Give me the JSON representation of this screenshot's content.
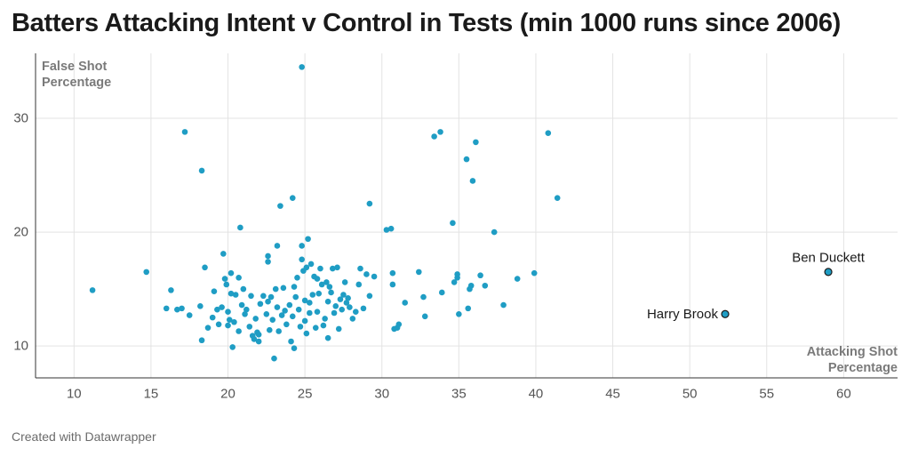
{
  "title": "Batters Attacking Intent v Control in Tests (min 1000 runs since 2006)",
  "footer": "Created with Datawrapper",
  "chart_data": {
    "type": "scatter",
    "xlim": [
      7.5,
      63.5
    ],
    "ylim": [
      7.2,
      35.7
    ],
    "x_ticks": [
      10,
      15,
      20,
      25,
      30,
      35,
      40,
      45,
      50,
      55,
      60
    ],
    "y_ticks": [
      10,
      20,
      30
    ],
    "grid": true,
    "xlabel_lines": [
      "Attacking Shot",
      "Percentage"
    ],
    "ylabel_lines": [
      "False Shot",
      "Percentage"
    ],
    "colors": {
      "point": "#1f9dc4",
      "point_stroke": "#1c6f8c",
      "highlight_stroke": "#1a1a1a",
      "grid": "#e3e3e3",
      "axis": "#333333"
    },
    "annotations": [
      {
        "label": "Ben Duckett",
        "x": 59.0,
        "y": 16.5
      },
      {
        "label": "Harry Brook",
        "x": 52.3,
        "y": 12.8
      }
    ],
    "points": [
      [
        11.2,
        14.9
      ],
      [
        14.7,
        16.5
      ],
      [
        16.0,
        13.3
      ],
      [
        16.3,
        14.9
      ],
      [
        16.7,
        13.2
      ],
      [
        17.0,
        13.3
      ],
      [
        17.2,
        28.8
      ],
      [
        17.5,
        12.7
      ],
      [
        18.2,
        13.5
      ],
      [
        18.3,
        25.4
      ],
      [
        18.3,
        10.5
      ],
      [
        18.5,
        16.9
      ],
      [
        18.7,
        11.6
      ],
      [
        19.0,
        12.5
      ],
      [
        19.1,
        14.8
      ],
      [
        19.3,
        13.2
      ],
      [
        19.4,
        11.9
      ],
      [
        19.6,
        13.4
      ],
      [
        19.7,
        18.1
      ],
      [
        19.8,
        15.9
      ],
      [
        19.9,
        15.4
      ],
      [
        20.0,
        13.0
      ],
      [
        20.0,
        11.8
      ],
      [
        20.1,
        12.3
      ],
      [
        20.2,
        14.6
      ],
      [
        20.2,
        16.4
      ],
      [
        20.3,
        9.9
      ],
      [
        20.4,
        12.1
      ],
      [
        20.5,
        14.5
      ],
      [
        20.7,
        11.3
      ],
      [
        20.7,
        16.0
      ],
      [
        20.9,
        13.6
      ],
      [
        20.8,
        20.4
      ],
      [
        21.0,
        15.0
      ],
      [
        21.1,
        12.8
      ],
      [
        21.2,
        13.2
      ],
      [
        21.4,
        11.7
      ],
      [
        21.5,
        14.4
      ],
      [
        21.6,
        10.9
      ],
      [
        21.7,
        10.6
      ],
      [
        21.8,
        12.4
      ],
      [
        21.9,
        11.2
      ],
      [
        22.0,
        11.0
      ],
      [
        22.0,
        10.4
      ],
      [
        22.1,
        13.7
      ],
      [
        22.3,
        14.4
      ],
      [
        22.5,
        12.8
      ],
      [
        22.6,
        13.9
      ],
      [
        22.6,
        17.4
      ],
      [
        22.6,
        17.9
      ],
      [
        22.7,
        11.4
      ],
      [
        22.8,
        14.3
      ],
      [
        22.9,
        12.3
      ],
      [
        23.0,
        8.9
      ],
      [
        23.1,
        15.0
      ],
      [
        23.2,
        18.8
      ],
      [
        23.2,
        13.4
      ],
      [
        23.3,
        11.3
      ],
      [
        23.4,
        22.3
      ],
      [
        23.5,
        12.7
      ],
      [
        23.6,
        15.1
      ],
      [
        23.7,
        13.1
      ],
      [
        23.8,
        11.9
      ],
      [
        24.0,
        13.6
      ],
      [
        24.1,
        10.4
      ],
      [
        24.2,
        12.6
      ],
      [
        24.2,
        23.0
      ],
      [
        24.3,
        9.8
      ],
      [
        24.3,
        15.2
      ],
      [
        24.4,
        14.3
      ],
      [
        24.5,
        16.0
      ],
      [
        24.6,
        13.2
      ],
      [
        24.7,
        11.7
      ],
      [
        24.8,
        18.8
      ],
      [
        24.8,
        34.5
      ],
      [
        24.8,
        17.6
      ],
      [
        24.9,
        16.6
      ],
      [
        25.0,
        14.0
      ],
      [
        25.0,
        12.2
      ],
      [
        25.1,
        11.1
      ],
      [
        25.1,
        16.9
      ],
      [
        25.2,
        19.4
      ],
      [
        25.3,
        13.8
      ],
      [
        25.3,
        12.9
      ],
      [
        25.4,
        17.2
      ],
      [
        25.5,
        14.5
      ],
      [
        25.6,
        16.1
      ],
      [
        25.7,
        11.6
      ],
      [
        25.8,
        13.0
      ],
      [
        25.8,
        15.9
      ],
      [
        25.9,
        14.6
      ],
      [
        26.0,
        16.8
      ],
      [
        26.1,
        15.4
      ],
      [
        26.2,
        11.8
      ],
      [
        26.3,
        12.4
      ],
      [
        26.4,
        15.6
      ],
      [
        26.5,
        10.7
      ],
      [
        26.5,
        13.9
      ],
      [
        26.6,
        15.2
      ],
      [
        26.7,
        14.7
      ],
      [
        26.8,
        16.8
      ],
      [
        26.9,
        12.9
      ],
      [
        27.0,
        13.5
      ],
      [
        27.1,
        16.9
      ],
      [
        27.2,
        11.5
      ],
      [
        27.3,
        14.1
      ],
      [
        27.4,
        13.2
      ],
      [
        27.5,
        14.5
      ],
      [
        27.6,
        15.6
      ],
      [
        27.7,
        13.8
      ],
      [
        27.8,
        14.2
      ],
      [
        27.9,
        13.4
      ],
      [
        28.1,
        12.4
      ],
      [
        28.3,
        13.0
      ],
      [
        28.5,
        15.4
      ],
      [
        28.6,
        16.8
      ],
      [
        28.8,
        13.3
      ],
      [
        29.0,
        16.3
      ],
      [
        29.2,
        14.4
      ],
      [
        29.2,
        22.5
      ],
      [
        29.5,
        16.1
      ],
      [
        30.3,
        20.2
      ],
      [
        30.6,
        20.3
      ],
      [
        30.7,
        16.4
      ],
      [
        30.7,
        15.4
      ],
      [
        30.8,
        11.5
      ],
      [
        31.0,
        11.6
      ],
      [
        31.1,
        11.9
      ],
      [
        31.5,
        13.8
      ],
      [
        32.4,
        16.5
      ],
      [
        32.7,
        14.3
      ],
      [
        32.8,
        12.6
      ],
      [
        33.4,
        28.4
      ],
      [
        33.8,
        28.8
      ],
      [
        33.9,
        14.7
      ],
      [
        34.6,
        20.8
      ],
      [
        34.7,
        15.6
      ],
      [
        34.9,
        16.0
      ],
      [
        34.9,
        16.3
      ],
      [
        35.0,
        12.8
      ],
      [
        35.5,
        26.4
      ],
      [
        35.6,
        13.3
      ],
      [
        35.7,
        15.0
      ],
      [
        35.8,
        15.3
      ],
      [
        35.9,
        24.5
      ],
      [
        36.1,
        27.9
      ],
      [
        36.4,
        16.2
      ],
      [
        36.7,
        15.3
      ],
      [
        37.3,
        20.0
      ],
      [
        37.9,
        13.6
      ],
      [
        38.8,
        15.9
      ],
      [
        39.9,
        16.4
      ],
      [
        40.8,
        28.7
      ],
      [
        41.4,
        23.0
      ]
    ]
  }
}
